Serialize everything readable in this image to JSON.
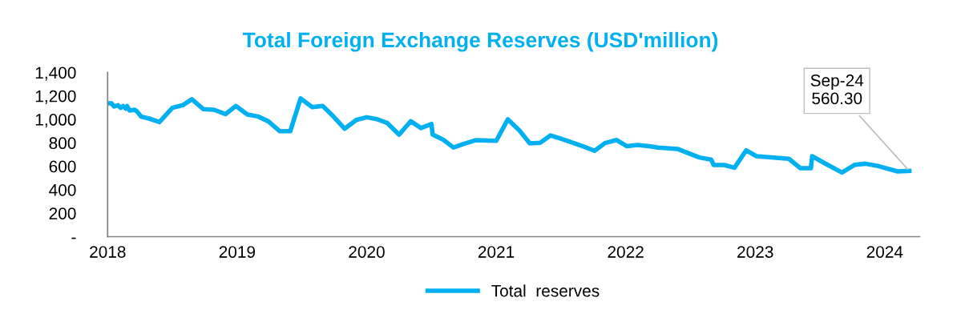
{
  "chart_data": {
    "type": "line",
    "title": "Total Foreign Exchange Reserves (USD'million)",
    "x": [
      2018.0,
      2018.03,
      2018.05,
      2018.08,
      2018.1,
      2018.12,
      2018.14,
      2018.15,
      2018.17,
      2018.21,
      2018.23,
      2018.26,
      2018.32,
      2018.4,
      2018.5,
      2018.58,
      2018.65,
      2018.74,
      2018.82,
      2018.91,
      2018.99,
      2019.08,
      2019.16,
      2019.24,
      2019.33,
      2019.41,
      2019.49,
      2019.58,
      2019.66,
      2019.74,
      2019.83,
      2019.92,
      2020.0,
      2020.08,
      2020.16,
      2020.25,
      2020.34,
      2020.42,
      2020.5,
      2020.51,
      2020.59,
      2020.67,
      2020.76,
      2020.84,
      2021.0,
      2021.09,
      2021.18,
      2021.26,
      2021.34,
      2021.42,
      2021.5,
      2021.67,
      2021.76,
      2021.84,
      2021.93,
      2022.01,
      2022.09,
      2022.18,
      2022.25,
      2022.4,
      2022.49,
      2022.57,
      2022.66,
      2022.68,
      2022.76,
      2022.84,
      2022.93,
      2023.01,
      2023.26,
      2023.35,
      2023.43,
      2023.44,
      2023.55,
      2023.67,
      2023.77,
      2023.85,
      2023.95,
      2024.1,
      2024.19
    ],
    "series": [
      {
        "name": "Total  reserves",
        "color": "#00b0f0",
        "values": [
          1137,
          1137,
          1110,
          1121,
          1098,
          1114,
          1091,
          1114,
          1075,
          1082,
          1064,
          1023,
          1007,
          977,
          1098,
          1121,
          1172,
          1087,
          1082,
          1045,
          1114,
          1041,
          1025,
          984,
          899,
          899,
          1178,
          1105,
          1114,
          1029,
          920,
          995,
          1018,
          1002,
          968,
          870,
          984,
          926,
          961,
          870,
          828,
          760,
          794,
          822,
          817,
          1000,
          904,
          796,
          801,
          863,
          835,
          771,
          732,
          798,
          824,
          771,
          782,
          771,
          760,
          748,
          709,
          675,
          657,
          611,
          611,
          588,
          736,
          686,
          664,
          583,
          583,
          686,
          618,
          547,
          613,
          622,
          602,
          556,
          560.3
        ]
      }
    ],
    "xlim": [
      2018,
      2024.27
    ],
    "xticks": [
      2018,
      2019,
      2020,
      2021,
      2022,
      2023,
      2024
    ],
    "ylim": [
      0,
      1400
    ],
    "yticks": [
      {
        "value": 0,
        "label": "-"
      },
      {
        "value": 200,
        "label": "200"
      },
      {
        "value": 400,
        "label": "400"
      },
      {
        "value": 600,
        "label": "600"
      },
      {
        "value": 800,
        "label": "800"
      },
      {
        "value": 1000,
        "label": "1,000"
      },
      {
        "value": 1200,
        "label": "1,200"
      },
      {
        "value": 1400,
        "label": "1,400"
      }
    ],
    "annotations": [
      {
        "text": "Sep-24\n560.30",
        "x": 2024.19,
        "y": 560.3
      }
    ],
    "grid": false,
    "legend": "bottom",
    "marker": "none",
    "line_style": "solid"
  }
}
